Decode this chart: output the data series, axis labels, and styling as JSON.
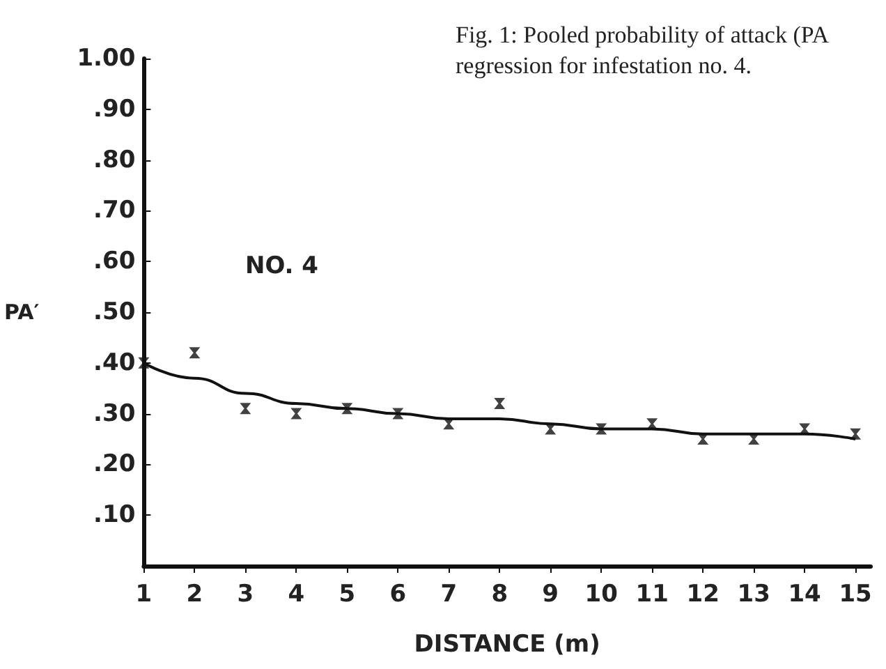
{
  "chart_data": {
    "type": "scatter",
    "xlabel": "DISTANCE (m)",
    "ylabel": "PA′",
    "annotations": [
      "Fig. 1: Pooled probability of attack (PA\nregression for infestation no. 4.",
      "NO. 4"
    ],
    "xlim": [
      1,
      15.3
    ],
    "xticks": [
      1,
      2,
      3,
      4,
      5,
      6,
      7,
      8,
      9,
      10,
      11,
      12,
      13,
      14,
      15
    ],
    "ylim": [
      0,
      1.0
    ],
    "yticks": [
      {
        "value": 0.1,
        "label": ".10"
      },
      {
        "value": 0.2,
        "label": ".20"
      },
      {
        "value": 0.3,
        "label": ".30"
      },
      {
        "value": 0.4,
        "label": ".40"
      },
      {
        "value": 0.5,
        "label": ".50"
      },
      {
        "value": 0.6,
        "label": ".60"
      },
      {
        "value": 0.7,
        "label": ".70"
      },
      {
        "value": 0.8,
        "label": ".80"
      },
      {
        "value": 0.9,
        "label": ".90"
      },
      {
        "value": 1.0,
        "label": "1.00"
      }
    ],
    "grid": false,
    "marker": "cross",
    "series": [
      {
        "color": "#111111",
        "x": [
          1,
          2,
          3,
          4,
          5,
          6,
          7,
          8,
          9,
          10,
          11,
          12,
          13,
          14,
          15
        ],
        "values": [
          0.4,
          0.42,
          0.31,
          0.3,
          0.31,
          0.3,
          0.28,
          0.32,
          0.27,
          0.27,
          0.28,
          0.25,
          0.25,
          0.27,
          0.26
        ]
      },
      {
        "type": "line",
        "color": "#111111",
        "marker": "none",
        "line_style": "solid",
        "x": [
          1,
          2,
          3,
          4,
          5,
          6,
          7,
          8,
          9,
          10,
          11,
          12,
          13,
          14,
          15
        ],
        "values": [
          0.4,
          0.37,
          0.34,
          0.32,
          0.31,
          0.3,
          0.29,
          0.29,
          0.28,
          0.27,
          0.27,
          0.26,
          0.26,
          0.26,
          0.25
        ]
      }
    ]
  }
}
